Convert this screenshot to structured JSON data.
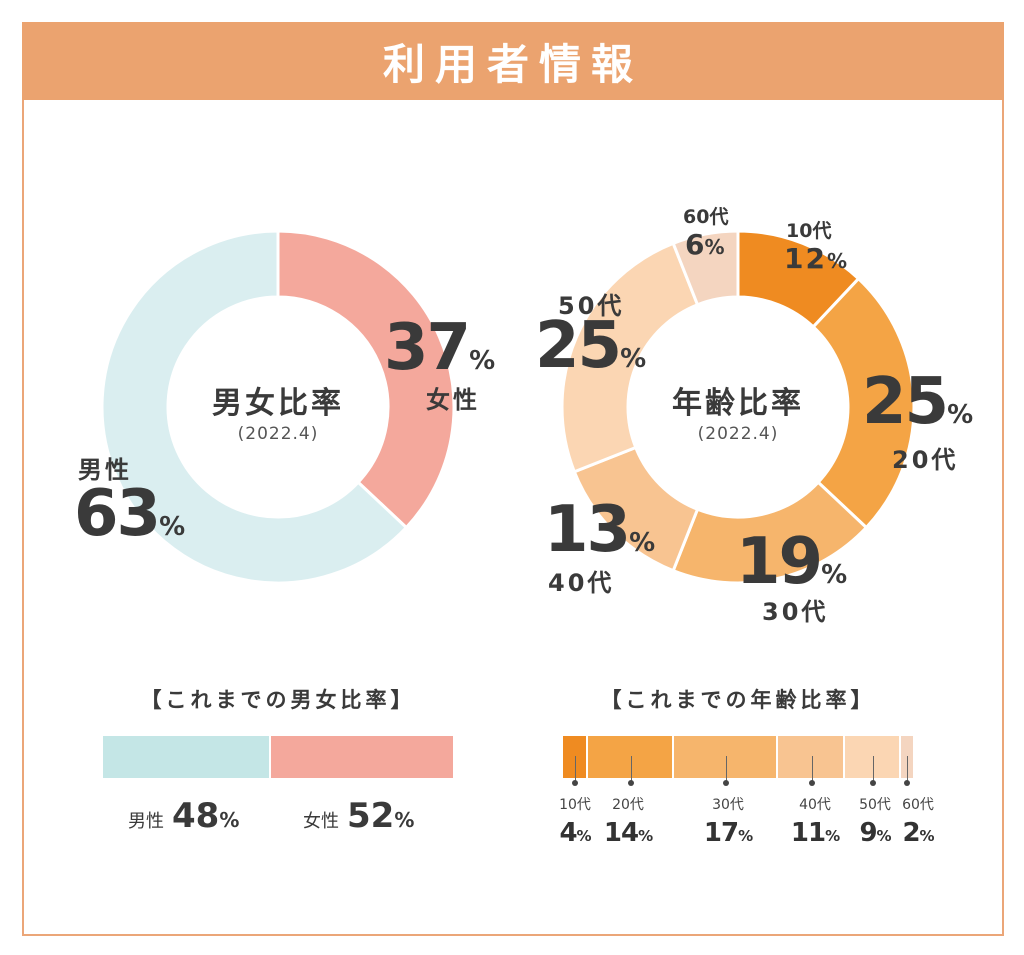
{
  "header": {
    "title": "利用者情報"
  },
  "chart_data": [
    {
      "type": "pie",
      "title": "男女比率",
      "subtitle": "(2022.4)",
      "categories": [
        "女性",
        "男性"
      ],
      "values": [
        37,
        63
      ],
      "colors": [
        "#f4a89c",
        "#daeef0"
      ]
    },
    {
      "type": "pie",
      "title": "年齢比率",
      "subtitle": "(2022.4)",
      "categories": [
        "10代",
        "20代",
        "30代",
        "40代",
        "50代",
        "60代"
      ],
      "values": [
        12,
        25,
        19,
        13,
        25,
        6
      ],
      "colors": [
        "#ef8b21",
        "#f4a445",
        "#f6b56c",
        "#f8c491",
        "#fbd6b3",
        "#f4d5c0"
      ]
    },
    {
      "type": "bar",
      "title": "【これまでの男女比率】",
      "categories": [
        "男性",
        "女性"
      ],
      "values": [
        48,
        52
      ],
      "colors": [
        "#c4e6e6",
        "#f4a89c"
      ]
    },
    {
      "type": "bar",
      "title": "【これまでの年齢比率】",
      "categories": [
        "10代",
        "20代",
        "30代",
        "40代",
        "50代",
        "60代"
      ],
      "values": [
        4,
        14,
        17,
        11,
        9,
        2
      ],
      "colors": [
        "#ef8b21",
        "#f4a445",
        "#f6b56c",
        "#f8c491",
        "#fbd6b3",
        "#f4d5c0"
      ]
    }
  ],
  "labels": {
    "gender": {
      "female_value": "37",
      "female_name": "女性",
      "male_value": "63",
      "male_name": "男性",
      "pct": "%"
    },
    "age": {
      "v10": "12",
      "n10": "10代",
      "v20": "25",
      "n20": "20代",
      "v30": "19",
      "n30": "30代",
      "v40": "13",
      "n40": "40代",
      "v50": "25",
      "n50": "50代",
      "v60": "6",
      "n60": "60代",
      "pct": "%"
    }
  },
  "history": {
    "gender_legend": [
      {
        "name": "男性",
        "value": "48",
        "pct": "%"
      },
      {
        "name": "女性",
        "value": "52",
        "pct": "%"
      }
    ],
    "age_legend": [
      {
        "name": "10代",
        "value": "4",
        "pct": "%"
      },
      {
        "name": "20代",
        "value": "14",
        "pct": "%"
      },
      {
        "name": "30代",
        "value": "17",
        "pct": "%"
      },
      {
        "name": "40代",
        "value": "11",
        "pct": "%"
      },
      {
        "name": "50代",
        "value": "9",
        "pct": "%"
      },
      {
        "name": "60代",
        "value": "2",
        "pct": "%"
      }
    ]
  }
}
